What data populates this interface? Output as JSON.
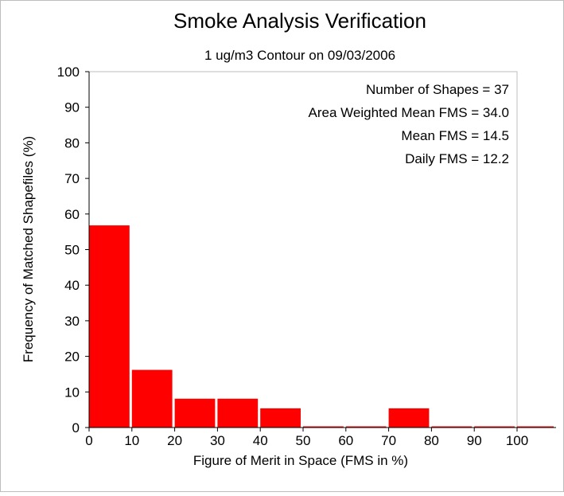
{
  "chart_data": {
    "type": "bar",
    "title": "Smoke Analysis Verification",
    "subtitle": "1 ug/m3 Contour on 09/03/2006",
    "xlabel": "Figure of Merit in Space (FMS in %)",
    "ylabel": "Frequency of Matched Shapefiles (%)",
    "xlim": [
      0,
      110
    ],
    "ylim": [
      0,
      100
    ],
    "xticks": [
      0,
      10,
      20,
      30,
      40,
      50,
      60,
      70,
      80,
      90,
      100
    ],
    "yticks": [
      0,
      10,
      20,
      30,
      40,
      50,
      60,
      70,
      80,
      90,
      100
    ],
    "bins": [
      {
        "start": 0,
        "end": 10,
        "value": 56.8
      },
      {
        "start": 10,
        "end": 20,
        "value": 16.2
      },
      {
        "start": 20,
        "end": 30,
        "value": 8.1
      },
      {
        "start": 30,
        "end": 40,
        "value": 8.1
      },
      {
        "start": 40,
        "end": 50,
        "value": 5.4
      },
      {
        "start": 50,
        "end": 60,
        "value": 0
      },
      {
        "start": 60,
        "end": 70,
        "value": 0
      },
      {
        "start": 70,
        "end": 80,
        "value": 5.4
      },
      {
        "start": 80,
        "end": 90,
        "value": 0
      },
      {
        "start": 90,
        "end": 100,
        "value": 0
      },
      {
        "start": 100,
        "end": 110,
        "value": 0
      }
    ],
    "bar_color": "#ff0000",
    "grid": false,
    "annotations": [
      "Number of Shapes = 37",
      "Area Weighted Mean FMS = 34.0",
      "Mean FMS = 14.5",
      "Daily FMS = 12.2"
    ]
  }
}
